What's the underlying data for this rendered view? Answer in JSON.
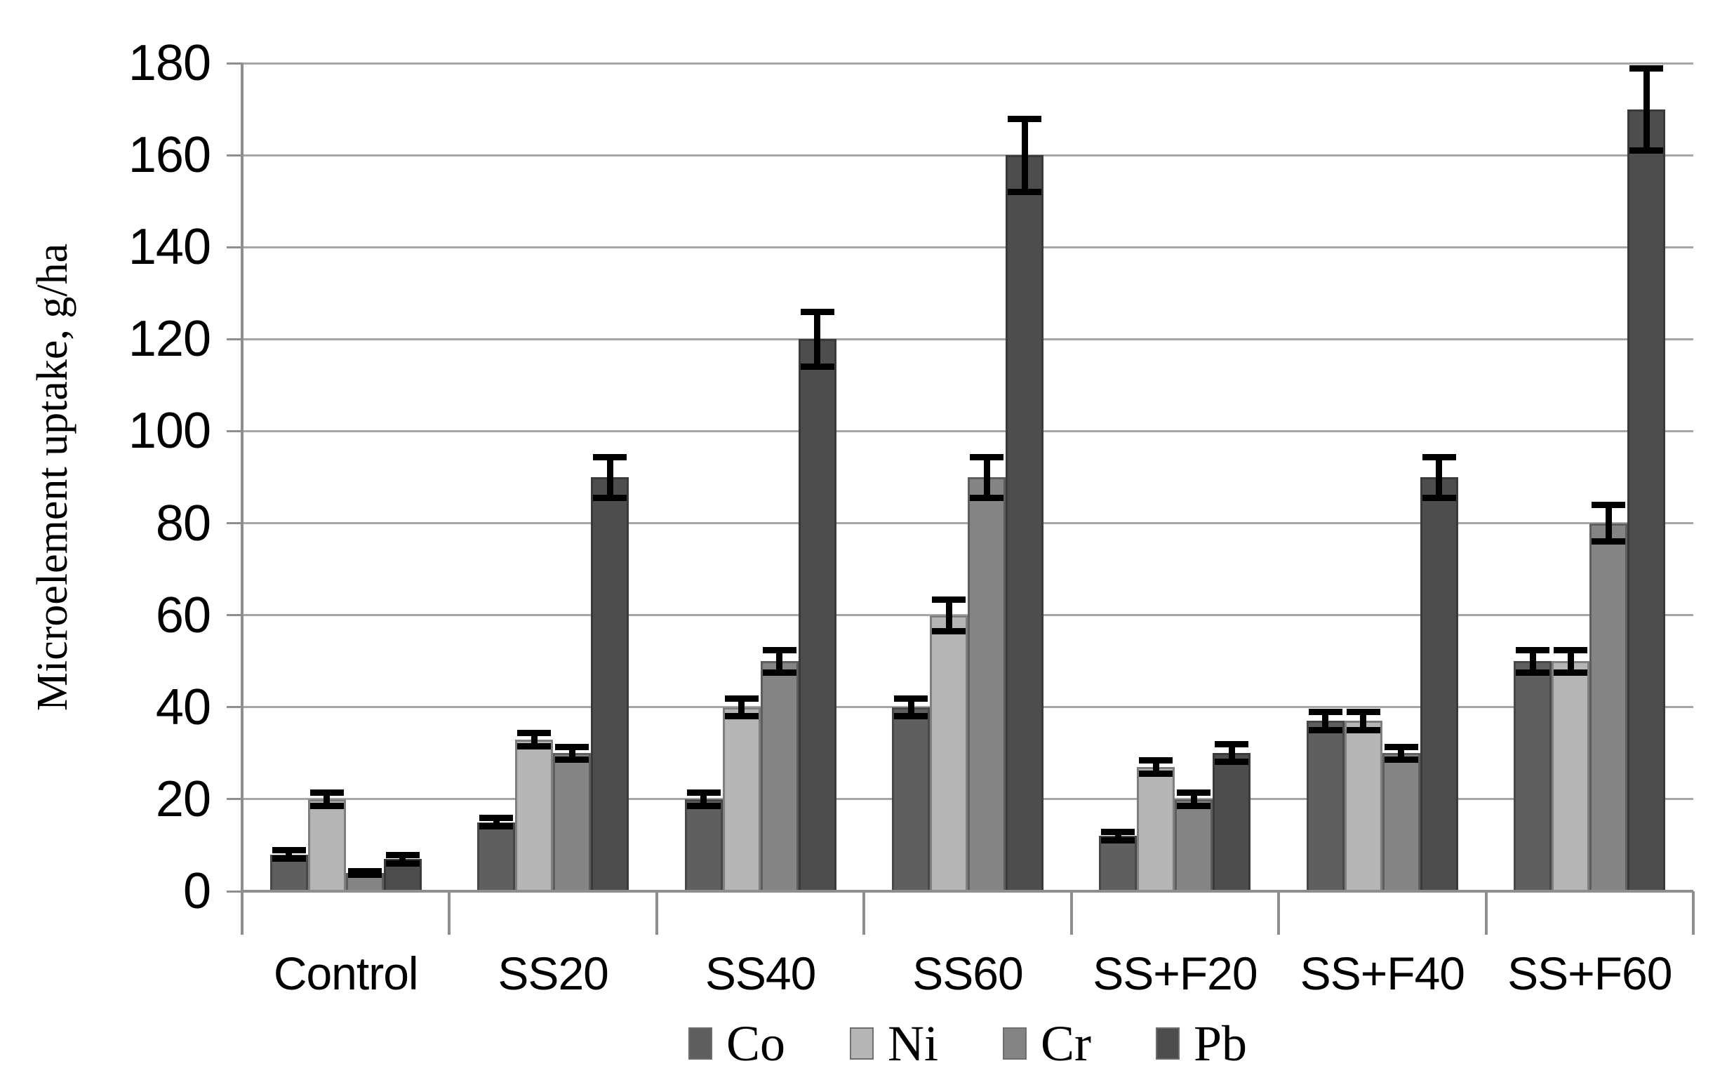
{
  "chart_data": {
    "type": "bar",
    "title": "",
    "xlabel": "",
    "ylabel": "Microelement uptake, g/ha",
    "ylim": [
      0,
      180
    ],
    "ytick_step": 20,
    "yticks": [
      0,
      20,
      40,
      60,
      80,
      100,
      120,
      140,
      160,
      180
    ],
    "grid": true,
    "legend_position": "bottom",
    "error_bars": true,
    "categories": [
      "Control",
      "SS20",
      "SS40",
      "SS60",
      "SS+F20",
      "SS+F40",
      "SS+F60"
    ],
    "series": [
      {
        "name": "Co",
        "color": "#5f5f5f",
        "border_color": "#484848",
        "values": [
          8,
          15,
          20,
          40,
          12,
          37,
          50
        ],
        "errors": [
          1,
          1,
          1.5,
          2,
          1,
          2,
          2.5
        ]
      },
      {
        "name": "Ni",
        "color": "#b5b5b5",
        "border_color": "#7f7f7f",
        "values": [
          20,
          33,
          40,
          60,
          27,
          37,
          50
        ],
        "errors": [
          1.5,
          1.5,
          2,
          3.5,
          1.5,
          2,
          2.5
        ]
      },
      {
        "name": "Cr",
        "color": "#848484",
        "border_color": "#5e5e5e",
        "values": [
          4,
          30,
          50,
          90,
          20,
          30,
          80
        ],
        "errors": [
          0.5,
          1.5,
          2.5,
          4.5,
          1.5,
          1.5,
          4
        ]
      },
      {
        "name": "Pb",
        "color": "#4d4d4d",
        "border_color": "#3a3a3a",
        "values": [
          7,
          90,
          120,
          160,
          30,
          90,
          170
        ],
        "errors": [
          1,
          4.5,
          6,
          8,
          2,
          4.5,
          9
        ]
      }
    ],
    "colors": {
      "gridline": "#a6a6a6",
      "axis": "#8e8e8e",
      "error_bar": "#000000",
      "text": "#000000",
      "background": "#ffffff"
    }
  }
}
